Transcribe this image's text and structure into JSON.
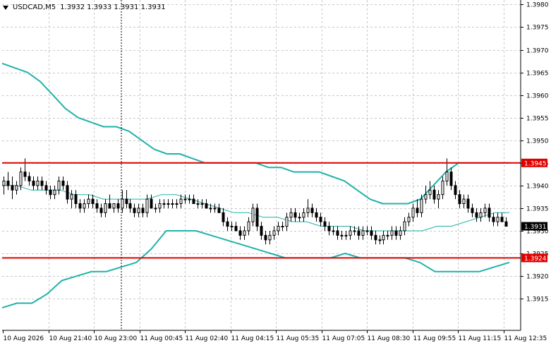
{
  "window": {
    "symbol_timeframe": "USDCAD,M5",
    "ohlc": "1.3932 1.3933 1.3931 1.3931"
  },
  "colors": {
    "background": "#ffffff",
    "grid": "#c8c8c8",
    "candle": "#000000",
    "bollinger": "#20b2aa",
    "level_line": "#e00000",
    "level_label_bg": "#e00000",
    "price_label_bg": "#000000"
  },
  "chart_data": {
    "type": "candlestick",
    "y_range": [
      1.3908,
      1.3981
    ],
    "y_ticks": [
      "1.3980",
      "1.3975",
      "1.3970",
      "1.3965",
      "1.3960",
      "1.3955",
      "1.3950",
      "1.3945",
      "1.3940",
      "1.3935",
      "1.3930",
      "1.3925",
      "1.3920",
      "1.3915"
    ],
    "x_labels": [
      "10 Aug 2026",
      "10 Aug 21:40",
      "10 Aug 23:00",
      "11 Aug 00:45",
      "11 Aug 02:40",
      "11 Aug 04:15",
      "11 Aug 05:35",
      "11 Aug 07:05",
      "11 Aug 08:30",
      "11 Aug 09:55",
      "11 Aug 11:15",
      "11 Aug 12:35"
    ],
    "horizontal_levels": [
      {
        "price": 1.3945,
        "label": "1.3945"
      },
      {
        "price": 1.3924,
        "label": "1.3924"
      }
    ],
    "current_price": {
      "price": 1.3931,
      "label": "1.3931"
    },
    "candles": [
      [
        1.394,
        1.3942,
        1.3938,
        1.3941
      ],
      [
        1.3941,
        1.3943,
        1.3939,
        1.394
      ],
      [
        1.394,
        1.3942,
        1.3937,
        1.3939
      ],
      [
        1.3939,
        1.3941,
        1.3938,
        1.394
      ],
      [
        1.394,
        1.3944,
        1.3939,
        1.3943
      ],
      [
        1.3943,
        1.3946,
        1.3941,
        1.3942
      ],
      [
        1.3942,
        1.3943,
        1.394,
        1.3941
      ],
      [
        1.3941,
        1.3942,
        1.3939,
        1.394
      ],
      [
        1.394,
        1.3942,
        1.3939,
        1.3941
      ],
      [
        1.3941,
        1.3942,
        1.3939,
        1.394
      ],
      [
        1.394,
        1.3941,
        1.3938,
        1.3939
      ],
      [
        1.3939,
        1.394,
        1.3937,
        1.3938
      ],
      [
        1.3938,
        1.394,
        1.3937,
        1.3939
      ],
      [
        1.3939,
        1.3942,
        1.3938,
        1.3941
      ],
      [
        1.3941,
        1.3942,
        1.3939,
        1.394
      ],
      [
        1.394,
        1.3941,
        1.3936,
        1.3937
      ],
      [
        1.3937,
        1.3939,
        1.3935,
        1.3938
      ],
      [
        1.3938,
        1.3939,
        1.3935,
        1.3936
      ],
      [
        1.3936,
        1.3937,
        1.3934,
        1.3935
      ],
      [
        1.3935,
        1.3937,
        1.3934,
        1.3936
      ],
      [
        1.3936,
        1.3938,
        1.3935,
        1.3937
      ],
      [
        1.3937,
        1.3938,
        1.3935,
        1.3936
      ],
      [
        1.3936,
        1.3937,
        1.3934,
        1.3935
      ],
      [
        1.3935,
        1.3936,
        1.3933,
        1.3934
      ],
      [
        1.3934,
        1.3937,
        1.3933,
        1.3936
      ],
      [
        1.3936,
        1.3938,
        1.3935,
        1.3935
      ],
      [
        1.3935,
        1.3936,
        1.3934,
        1.3936
      ],
      [
        1.3936,
        1.3937,
        1.3934,
        1.3935
      ],
      [
        1.3935,
        1.3939,
        1.3934,
        1.3937
      ],
      [
        1.3937,
        1.3939,
        1.3935,
        1.3936
      ],
      [
        1.3936,
        1.3937,
        1.3934,
        1.3935
      ],
      [
        1.3935,
        1.3936,
        1.3933,
        1.3934
      ],
      [
        1.3934,
        1.3936,
        1.3933,
        1.3935
      ],
      [
        1.3935,
        1.3936,
        1.3933,
        1.3934
      ],
      [
        1.3934,
        1.3938,
        1.3933,
        1.3937
      ],
      [
        1.3937,
        1.3938,
        1.3935,
        1.3935
      ],
      [
        1.3935,
        1.3936,
        1.3934,
        1.3935
      ],
      [
        1.3935,
        1.3937,
        1.3934,
        1.3936
      ],
      [
        1.3936,
        1.3937,
        1.3935,
        1.3936
      ],
      [
        1.3936,
        1.3937,
        1.3935,
        1.3936
      ],
      [
        1.3936,
        1.3937,
        1.3935,
        1.3936
      ],
      [
        1.3936,
        1.3937,
        1.3935,
        1.3936
      ],
      [
        1.3936,
        1.3938,
        1.3935,
        1.3937
      ],
      [
        1.3937,
        1.3938,
        1.3936,
        1.3937
      ],
      [
        1.3937,
        1.3938,
        1.3936,
        1.3937
      ],
      [
        1.3937,
        1.3938,
        1.3936,
        1.3936
      ],
      [
        1.3936,
        1.3937,
        1.3935,
        1.3936
      ],
      [
        1.3936,
        1.3937,
        1.3935,
        1.3936
      ],
      [
        1.3936,
        1.3937,
        1.3935,
        1.3935
      ],
      [
        1.3935,
        1.3936,
        1.3934,
        1.3935
      ],
      [
        1.3935,
        1.3936,
        1.3934,
        1.3935
      ],
      [
        1.3935,
        1.3936,
        1.3934,
        1.3934
      ],
      [
        1.3934,
        1.3935,
        1.3931,
        1.3932
      ],
      [
        1.3932,
        1.3933,
        1.393,
        1.3931
      ],
      [
        1.3931,
        1.3932,
        1.393,
        1.3931
      ],
      [
        1.3931,
        1.3932,
        1.393,
        1.393
      ],
      [
        1.393,
        1.3931,
        1.3928,
        1.3929
      ],
      [
        1.3929,
        1.3931,
        1.3928,
        1.393
      ],
      [
        1.393,
        1.3933,
        1.3929,
        1.3932
      ],
      [
        1.3932,
        1.3936,
        1.3931,
        1.3935
      ],
      [
        1.3935,
        1.3936,
        1.393,
        1.3931
      ],
      [
        1.3931,
        1.3932,
        1.3928,
        1.3929
      ],
      [
        1.3929,
        1.393,
        1.3927,
        1.3928
      ],
      [
        1.3928,
        1.393,
        1.3927,
        1.3929
      ],
      [
        1.3929,
        1.3931,
        1.3928,
        1.393
      ],
      [
        1.393,
        1.3932,
        1.3929,
        1.3931
      ],
      [
        1.3931,
        1.3932,
        1.393,
        1.3931
      ],
      [
        1.3931,
        1.3934,
        1.393,
        1.3933
      ],
      [
        1.3933,
        1.3935,
        1.3932,
        1.3934
      ],
      [
        1.3934,
        1.3935,
        1.3932,
        1.3933
      ],
      [
        1.3933,
        1.3934,
        1.3932,
        1.3933
      ],
      [
        1.3933,
        1.3935,
        1.3932,
        1.3934
      ],
      [
        1.3934,
        1.3937,
        1.3933,
        1.3935
      ],
      [
        1.3935,
        1.3936,
        1.3933,
        1.3934
      ],
      [
        1.3934,
        1.3935,
        1.3932,
        1.3933
      ],
      [
        1.3933,
        1.3934,
        1.3931,
        1.3932
      ],
      [
        1.3932,
        1.3933,
        1.393,
        1.3931
      ],
      [
        1.3931,
        1.3932,
        1.3929,
        1.393
      ],
      [
        1.393,
        1.3931,
        1.3929,
        1.393
      ],
      [
        1.393,
        1.3931,
        1.3928,
        1.3929
      ],
      [
        1.3929,
        1.393,
        1.3928,
        1.3929
      ],
      [
        1.3929,
        1.393,
        1.3928,
        1.3929
      ],
      [
        1.3929,
        1.3931,
        1.3928,
        1.393
      ],
      [
        1.393,
        1.3931,
        1.3929,
        1.393
      ],
      [
        1.393,
        1.3931,
        1.3928,
        1.3929
      ],
      [
        1.3929,
        1.3931,
        1.3928,
        1.393
      ],
      [
        1.393,
        1.3931,
        1.3929,
        1.393
      ],
      [
        1.393,
        1.3931,
        1.3928,
        1.3929
      ],
      [
        1.3929,
        1.393,
        1.3927,
        1.3928
      ],
      [
        1.3928,
        1.3929,
        1.3927,
        1.3928
      ],
      [
        1.3928,
        1.393,
        1.3927,
        1.3929
      ],
      [
        1.3929,
        1.393,
        1.3928,
        1.3929
      ],
      [
        1.3929,
        1.3931,
        1.3928,
        1.393
      ],
      [
        1.393,
        1.3931,
        1.3928,
        1.3929
      ],
      [
        1.3929,
        1.3931,
        1.3928,
        1.393
      ],
      [
        1.393,
        1.3933,
        1.3929,
        1.3932
      ],
      [
        1.3932,
        1.3934,
        1.3931,
        1.3933
      ],
      [
        1.3933,
        1.3936,
        1.3932,
        1.3935
      ],
      [
        1.3935,
        1.3937,
        1.3933,
        1.3934
      ],
      [
        1.3934,
        1.3938,
        1.3933,
        1.3937
      ],
      [
        1.3937,
        1.394,
        1.3936,
        1.3938
      ],
      [
        1.3938,
        1.3941,
        1.3937,
        1.3939
      ],
      [
        1.3939,
        1.394,
        1.3936,
        1.3937
      ],
      [
        1.3937,
        1.3939,
        1.3935,
        1.3938
      ],
      [
        1.3938,
        1.3942,
        1.3937,
        1.3941
      ],
      [
        1.3941,
        1.3946,
        1.394,
        1.3943
      ],
      [
        1.3943,
        1.3944,
        1.3939,
        1.394
      ],
      [
        1.394,
        1.3941,
        1.3937,
        1.3938
      ],
      [
        1.3938,
        1.3939,
        1.3935,
        1.3936
      ],
      [
        1.3936,
        1.3938,
        1.3935,
        1.3937
      ],
      [
        1.3937,
        1.3938,
        1.3934,
        1.3935
      ],
      [
        1.3935,
        1.3936,
        1.3933,
        1.3934
      ],
      [
        1.3934,
        1.3935,
        1.3932,
        1.3933
      ],
      [
        1.3933,
        1.3935,
        1.3932,
        1.3934
      ],
      [
        1.3934,
        1.3936,
        1.3933,
        1.3935
      ],
      [
        1.3935,
        1.3936,
        1.3932,
        1.3933
      ],
      [
        1.3933,
        1.3934,
        1.3931,
        1.3932
      ],
      [
        1.3932,
        1.3934,
        1.3931,
        1.3933
      ],
      [
        1.3933,
        1.3934,
        1.3932,
        1.3932
      ],
      [
        1.3932,
        1.3933,
        1.3931,
        1.3931
      ]
    ],
    "bb_upper": [
      1.3967,
      1.3966,
      1.3965,
      1.3963,
      1.396,
      1.3957,
      1.3955,
      1.3954,
      1.3953,
      1.3953,
      1.3952,
      1.395,
      1.3948,
      1.3947,
      1.3947,
      1.3946,
      1.3945,
      1.3945,
      1.3945,
      1.3945,
      1.3945,
      1.3944,
      1.3944,
      1.3943,
      1.3943,
      1.3943,
      1.3942,
      1.3941,
      1.3939,
      1.3937,
      1.3936,
      1.3936,
      1.3936,
      1.3937,
      1.394,
      1.3943,
      1.3945,
      1.3945,
      1.3945,
      1.3945,
      1.3945
    ],
    "bb_middle": [
      1.394,
      1.394,
      1.3939,
      1.3939,
      1.3939,
      1.3938,
      1.3938,
      1.3937,
      1.3937,
      1.3937,
      1.3937,
      1.3938,
      1.3938,
      1.3937,
      1.3936,
      1.3935,
      1.3934,
      1.3934,
      1.3933,
      1.3933,
      1.3932,
      1.3932,
      1.3931,
      1.3931,
      1.3931,
      1.393,
      1.393,
      1.393,
      1.393,
      1.393,
      1.3931,
      1.3931,
      1.3932,
      1.3933,
      1.3934,
      1.3934
    ],
    "bb_lower": [
      1.3913,
      1.3914,
      1.3914,
      1.3916,
      1.3919,
      1.392,
      1.3921,
      1.3921,
      1.3922,
      1.3923,
      1.3926,
      1.393,
      1.393,
      1.393,
      1.3929,
      1.3928,
      1.3927,
      1.3926,
      1.3925,
      1.3924,
      1.3924,
      1.3924,
      1.3924,
      1.3925,
      1.3924,
      1.3924,
      1.3924,
      1.3924,
      1.3923,
      1.3921,
      1.3921,
      1.3921,
      1.3921,
      1.3922,
      1.3923
    ]
  }
}
